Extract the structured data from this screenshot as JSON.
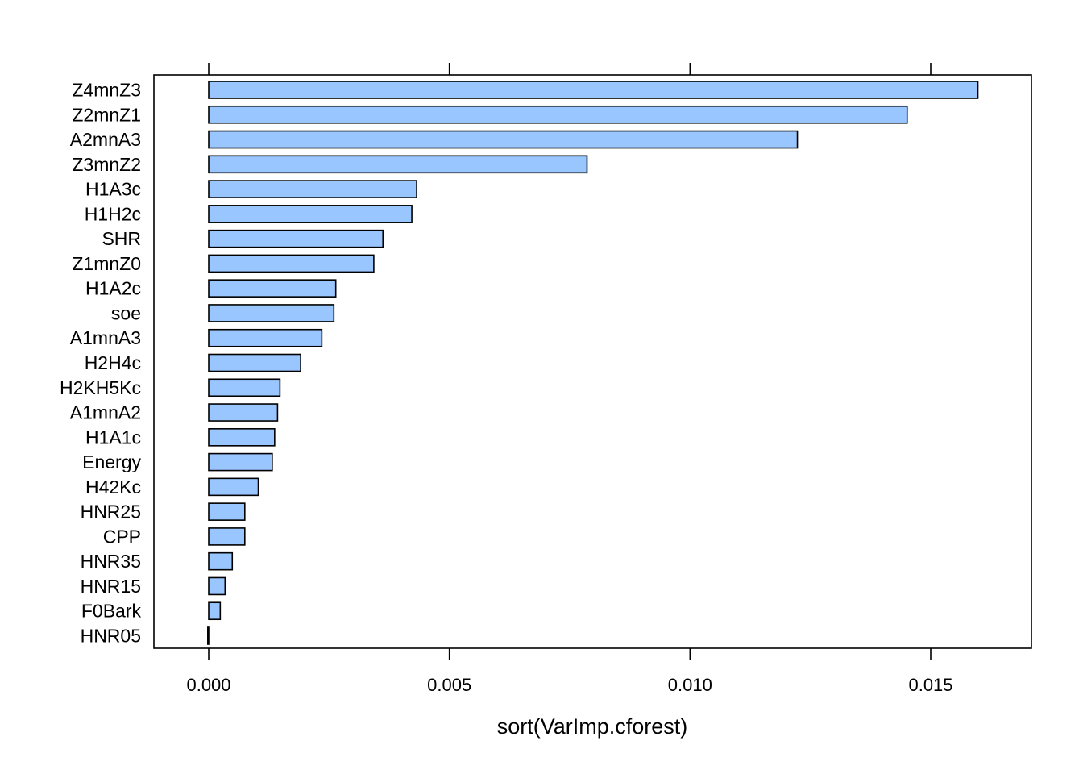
{
  "chart_data": {
    "type": "bar",
    "orientation": "horizontal",
    "xlabel": "sort(VarImp.cforest)",
    "ylabel": "",
    "title": "",
    "xlim": [
      -0.0011,
      0.017
    ],
    "xticks": [
      0.0,
      0.005,
      0.01,
      0.015
    ],
    "xtick_labels": [
      "0.000",
      "0.005",
      "0.010",
      "0.015"
    ],
    "grid": false,
    "bar_color": "#99c6ff",
    "categories": [
      "Z4mnZ3",
      "Z2mnZ1",
      "A2mnA3",
      "Z3mnZ2",
      "H1A3c",
      "H1H2c",
      "SHR",
      "Z1mnZ0",
      "H1A2c",
      "soe",
      "A1mnA3",
      "H2H4c",
      "H2KH5Kc",
      "A1mnA2",
      "H1A1c",
      "Energy",
      "H42Kc",
      "HNR25",
      "CPP",
      "HNR35",
      "HNR15",
      "F0Bark",
      "HNR05"
    ],
    "values": [
      0.01598,
      0.01451,
      0.01223,
      0.00786,
      0.00432,
      0.00422,
      0.00362,
      0.00343,
      0.00264,
      0.0026,
      0.00235,
      0.00191,
      0.00148,
      0.00143,
      0.00137,
      0.00132,
      0.00103,
      0.00075,
      0.00075,
      0.00049,
      0.00034,
      0.00024,
      -2e-05
    ]
  }
}
